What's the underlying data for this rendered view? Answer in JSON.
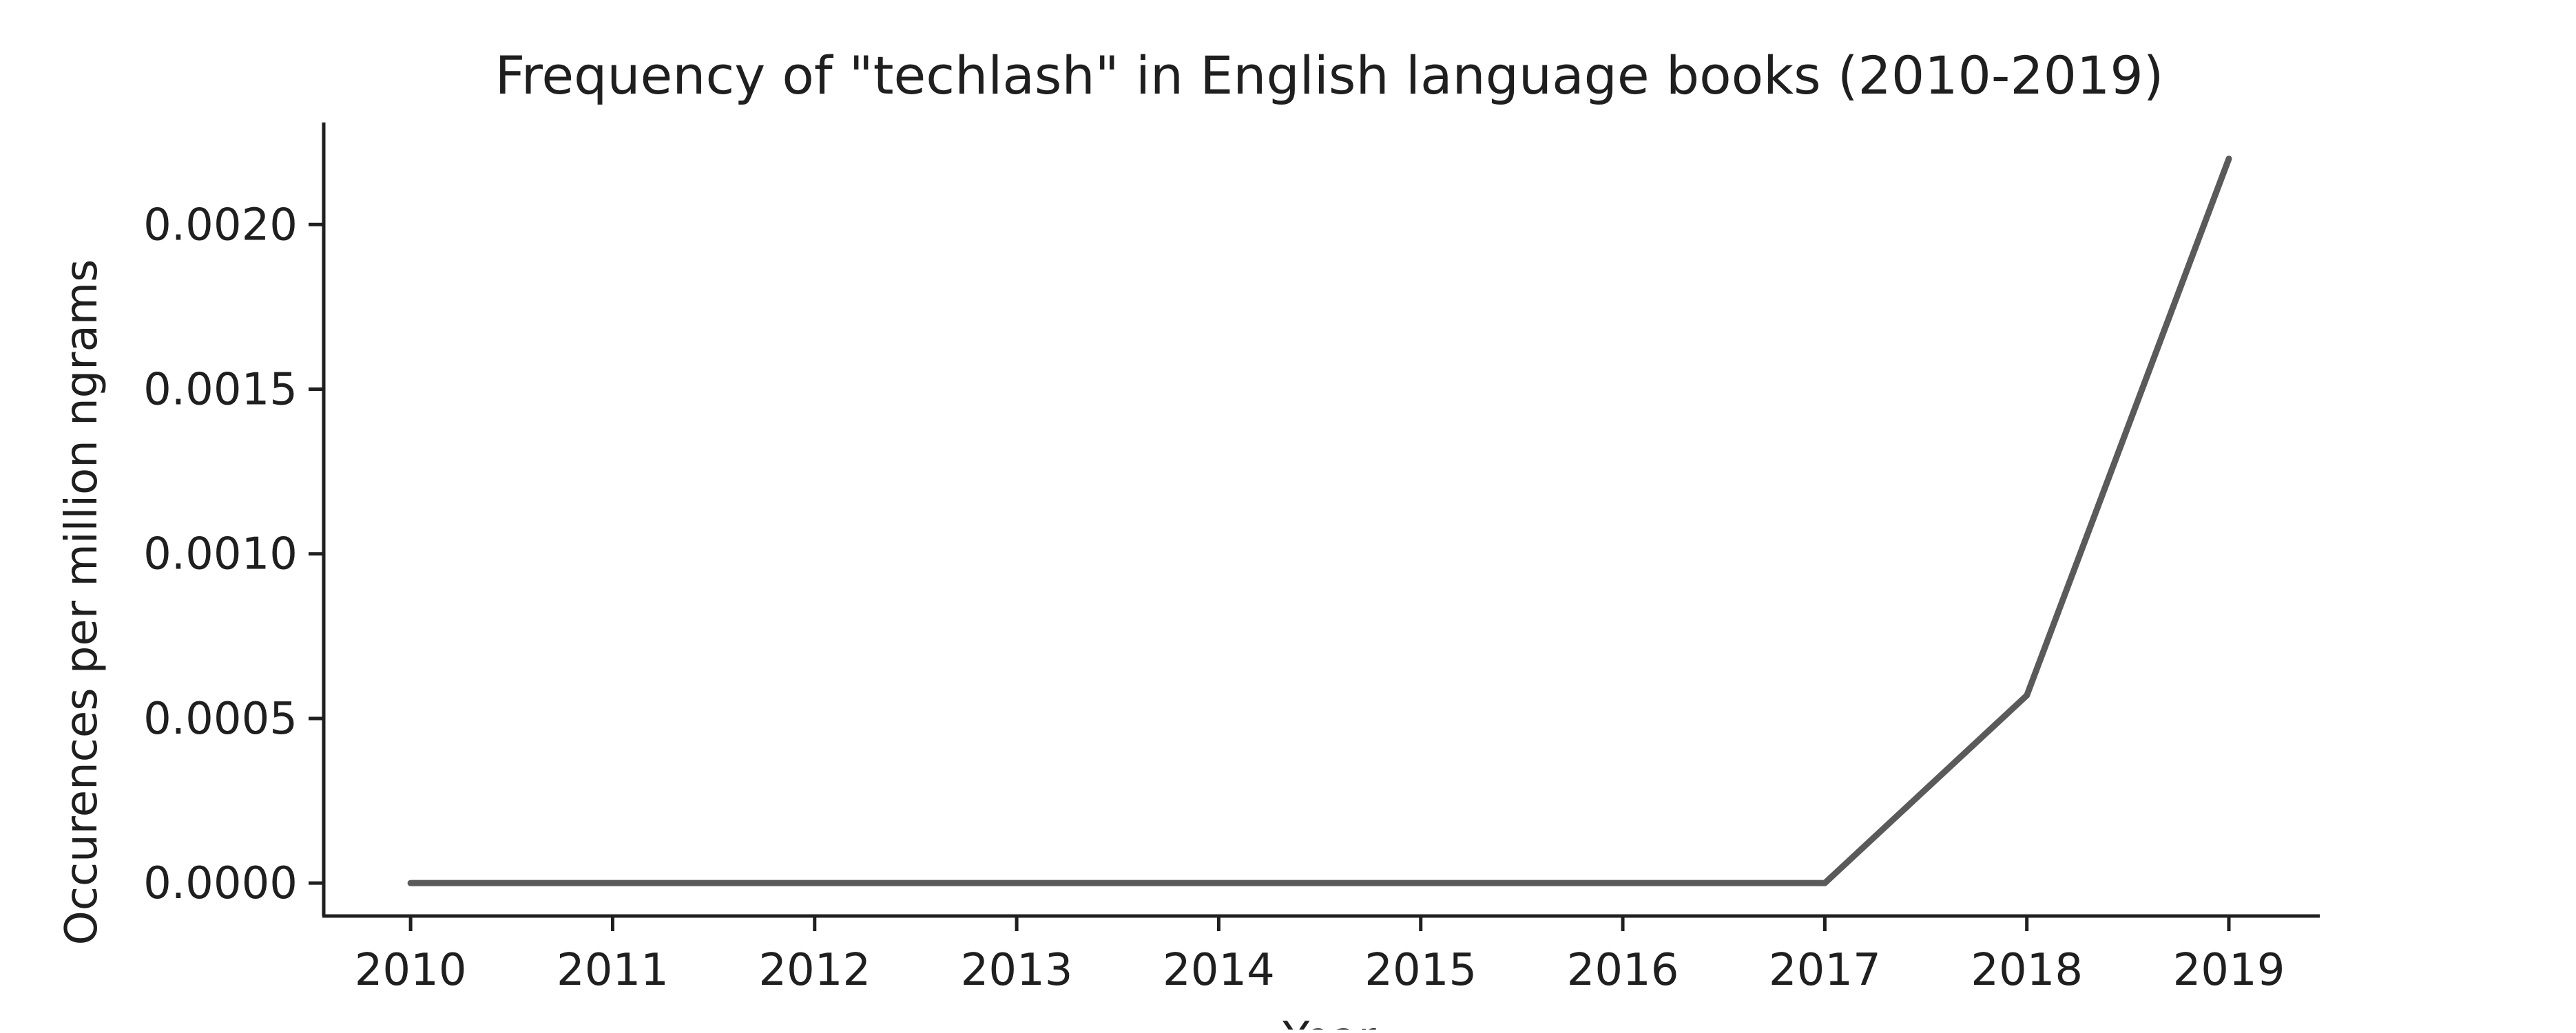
{
  "chart_data": {
    "type": "line",
    "title": "Frequency of \"techlash\" in English language books (2010-2019)",
    "xlabel": "Year",
    "ylabel": "Occurences per million ngrams",
    "x": [
      2010,
      2011,
      2012,
      2013,
      2014,
      2015,
      2016,
      2017,
      2018,
      2019
    ],
    "series": [
      {
        "values": [
          0,
          0,
          0,
          0,
          0,
          0,
          0,
          0,
          0.00057,
          0.0022
        ],
        "color": "#5a5a5a"
      }
    ],
    "xticks": [
      "2010",
      "2011",
      "2012",
      "2013",
      "2014",
      "2015",
      "2016",
      "2017",
      "2018",
      "2019"
    ],
    "yticks": [
      {
        "value": 0.0,
        "label": "0.0000"
      },
      {
        "value": 0.0005,
        "label": "0.0005"
      },
      {
        "value": 0.001,
        "label": "0.0010"
      },
      {
        "value": 0.0015,
        "label": "0.0015"
      },
      {
        "value": 0.002,
        "label": "0.0020"
      }
    ],
    "xlim": [
      2009.57,
      2019.45
    ],
    "ylim": [
      -0.0001,
      0.00231
    ],
    "grid": false,
    "legend": "none"
  }
}
